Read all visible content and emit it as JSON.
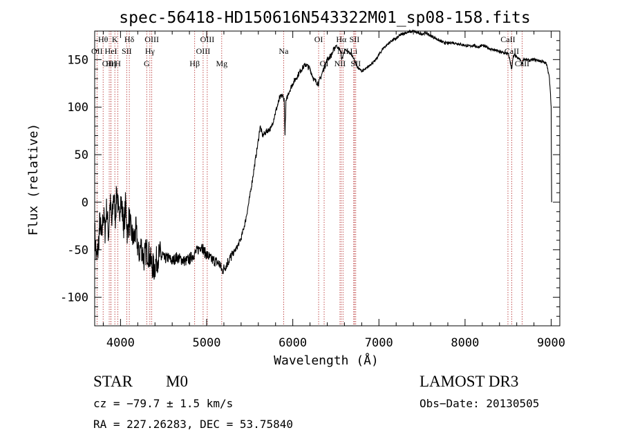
{
  "chart_data": {
    "type": "line",
    "title": "spec-56418-HD150616N543322M01_sp08-158.fits",
    "xlabel": "Wavelength (Å)",
    "ylabel": "Flux (relative)",
    "xlim": [
      3700,
      9100
    ],
    "ylim": [
      -130,
      180
    ],
    "xticks": [
      4000,
      5000,
      6000,
      7000,
      8000,
      9000
    ],
    "yticks": [
      -100,
      -50,
      0,
      50,
      100,
      150
    ],
    "grid": false,
    "line_color": "#000000",
    "marker_line_color": "#b22222",
    "series": [
      {
        "values": [
          [
            3700,
            -30
          ],
          [
            3720,
            -60
          ],
          [
            3740,
            -50
          ],
          [
            3760,
            -20
          ],
          [
            3780,
            -40
          ],
          [
            3800,
            -10
          ],
          [
            3820,
            -30
          ],
          [
            3840,
            -5
          ],
          [
            3860,
            -35
          ],
          [
            3880,
            0
          ],
          [
            3900,
            -25
          ],
          [
            3920,
            10
          ],
          [
            3940,
            -15
          ],
          [
            3960,
            15
          ],
          [
            3980,
            -20
          ],
          [
            4000,
            5
          ],
          [
            4020,
            -10
          ],
          [
            4040,
            -25
          ],
          [
            4060,
            0
          ],
          [
            4080,
            -35
          ],
          [
            4100,
            -15
          ],
          [
            4120,
            -30
          ],
          [
            4150,
            -40
          ],
          [
            4180,
            -30
          ],
          [
            4210,
            -55
          ],
          [
            4240,
            -45
          ],
          [
            4270,
            -60
          ],
          [
            4300,
            -50
          ],
          [
            4330,
            -55
          ],
          [
            4360,
            -65
          ],
          [
            4390,
            -70
          ],
          [
            4420,
            -60
          ],
          [
            4460,
            -55
          ],
          [
            4500,
            -60
          ],
          [
            4550,
            -58
          ],
          [
            4600,
            -62
          ],
          [
            4650,
            -58
          ],
          [
            4700,
            -60
          ],
          [
            4750,
            -62
          ],
          [
            4800,
            -60
          ],
          [
            4850,
            -55
          ],
          [
            4900,
            -50
          ],
          [
            4940,
            -45
          ],
          [
            4970,
            -52
          ],
          [
            5000,
            -55
          ],
          [
            5050,
            -60
          ],
          [
            5100,
            -62
          ],
          [
            5150,
            -65
          ],
          [
            5180,
            -72
          ],
          [
            5200,
            -70
          ],
          [
            5250,
            -62
          ],
          [
            5300,
            -55
          ],
          [
            5350,
            -48
          ],
          [
            5400,
            -38
          ],
          [
            5450,
            -20
          ],
          [
            5500,
            5
          ],
          [
            5550,
            35
          ],
          [
            5600,
            65
          ],
          [
            5620,
            80
          ],
          [
            5650,
            70
          ],
          [
            5700,
            75
          ],
          [
            5750,
            78
          ],
          [
            5800,
            95
          ],
          [
            5850,
            110
          ],
          [
            5880,
            112
          ],
          [
            5900,
            108
          ],
          [
            5910,
            70
          ],
          [
            5920,
            105
          ],
          [
            5950,
            115
          ],
          [
            6000,
            125
          ],
          [
            6050,
            132
          ],
          [
            6100,
            140
          ],
          [
            6150,
            145
          ],
          [
            6200,
            140
          ],
          [
            6250,
            128
          ],
          [
            6300,
            125
          ],
          [
            6350,
            138
          ],
          [
            6400,
            150
          ],
          [
            6450,
            155
          ],
          [
            6500,
            165
          ],
          [
            6550,
            160
          ],
          [
            6570,
            150
          ],
          [
            6600,
            160
          ],
          [
            6650,
            158
          ],
          [
            6700,
            153
          ],
          [
            6750,
            142
          ],
          [
            6800,
            138
          ],
          [
            6850,
            140
          ],
          [
            6900,
            145
          ],
          [
            6950,
            148
          ],
          [
            7000,
            155
          ],
          [
            7050,
            162
          ],
          [
            7100,
            166
          ],
          [
            7150,
            170
          ],
          [
            7200,
            172
          ],
          [
            7250,
            176
          ],
          [
            7300,
            178
          ],
          [
            7350,
            179
          ],
          [
            7400,
            180
          ],
          [
            7450,
            178
          ],
          [
            7500,
            177
          ],
          [
            7550,
            178
          ],
          [
            7600,
            175
          ],
          [
            7650,
            173
          ],
          [
            7700,
            170
          ],
          [
            7750,
            168
          ],
          [
            7800,
            167
          ],
          [
            7850,
            168
          ],
          [
            7900,
            167
          ],
          [
            7950,
            166
          ],
          [
            8000,
            165
          ],
          [
            8050,
            164
          ],
          [
            8100,
            165
          ],
          [
            8150,
            163
          ],
          [
            8200,
            165
          ],
          [
            8250,
            163
          ],
          [
            8300,
            161
          ],
          [
            8350,
            160
          ],
          [
            8400,
            158
          ],
          [
            8450,
            157
          ],
          [
            8500,
            156
          ],
          [
            8520,
            150
          ],
          [
            8540,
            140
          ],
          [
            8560,
            153
          ],
          [
            8580,
            155
          ],
          [
            8600,
            152
          ],
          [
            8640,
            150
          ],
          [
            8660,
            145
          ],
          [
            8680,
            151
          ],
          [
            8700,
            150
          ],
          [
            8750,
            149
          ],
          [
            8800,
            150
          ],
          [
            8850,
            149
          ],
          [
            8900,
            148
          ],
          [
            8950,
            145
          ],
          [
            8980,
            130
          ],
          [
            9000,
            100
          ],
          [
            9005,
            0
          ]
        ]
      }
    ],
    "line_markers": [
      {
        "label": "OII",
        "wavelength": 3727,
        "row": 2
      },
      {
        "label": "Hθ",
        "wavelength": 3798,
        "row": 1
      },
      {
        "label": "OIII",
        "wavelength": 3869,
        "row": 3
      },
      {
        "label": "Hη",
        "wavelength": 3889,
        "row": 3
      },
      {
        "label": "HeI",
        "wavelength": 3889,
        "row": 2
      },
      {
        "label": "K",
        "wavelength": 3934,
        "row": 1
      },
      {
        "label": "H",
        "wavelength": 3969,
        "row": 3
      },
      {
        "label": "SII",
        "wavelength": 4072,
        "row": 2
      },
      {
        "label": "Hδ",
        "wavelength": 4102,
        "row": 1
      },
      {
        "label": "G",
        "wavelength": 4304,
        "row": 3
      },
      {
        "label": "Hγ",
        "wavelength": 4341,
        "row": 2
      },
      {
        "label": "OIII",
        "wavelength": 4363,
        "row": 1
      },
      {
        "label": "Hβ",
        "wavelength": 4861,
        "row": 3
      },
      {
        "label": "OIII",
        "wavelength": 4959,
        "row": 2
      },
      {
        "label": "OIII",
        "wavelength": 5007,
        "row": 1
      },
      {
        "label": "Mg",
        "wavelength": 5175,
        "row": 3
      },
      {
        "label": "Na",
        "wavelength": 5894,
        "row": 2
      },
      {
        "label": "OI",
        "wavelength": 6300,
        "row": 1
      },
      {
        "label": "OI",
        "wavelength": 6364,
        "row": 3
      },
      {
        "label": "NII",
        "wavelength": 6548,
        "row": 3
      },
      {
        "label": "Hα",
        "wavelength": 6563,
        "row": 1
      },
      {
        "label": "NII",
        "wavelength": 6583,
        "row": 2
      },
      {
        "label": "Li",
        "wavelength": 6708,
        "row": 2
      },
      {
        "label": "SII",
        "wavelength": 6716,
        "row": 1
      },
      {
        "label": "SII",
        "wavelength": 6731,
        "row": 3
      },
      {
        "label": "CaII",
        "wavelength": 8498,
        "row": 1
      },
      {
        "label": "CaII",
        "wavelength": 8542,
        "row": 2
      },
      {
        "label": "CaII",
        "wavelength": 8662,
        "row": 3
      }
    ]
  },
  "info": {
    "object_class": "STAR",
    "subclass": "M0",
    "survey": "LAMOST DR3",
    "cz": "cz = −79.7 ± 1.5 km/s",
    "obs_date": "Obs−Date: 20130505",
    "coords": "RA = 227.26283, DEC =  53.75840"
  }
}
